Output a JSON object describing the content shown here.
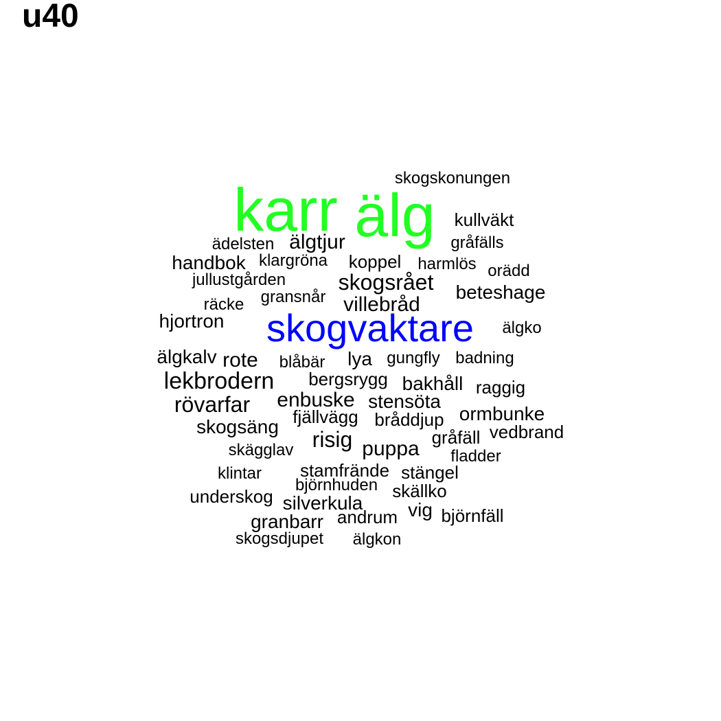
{
  "title": "u40",
  "colors": {
    "default": "#000000",
    "green": "#22ff22",
    "blue": "#0000ff"
  },
  "words": [
    {
      "text": "skogskonungen",
      "color": "default"
    },
    {
      "text": "karr",
      "color": "green"
    },
    {
      "text": "älg",
      "color": "green"
    },
    {
      "text": "kullväkt",
      "color": "default"
    },
    {
      "text": "ädelsten",
      "color": "default"
    },
    {
      "text": "älgtjur",
      "color": "default"
    },
    {
      "text": "gråfälls",
      "color": "default"
    },
    {
      "text": "handbok",
      "color": "default"
    },
    {
      "text": "klargröna",
      "color": "default"
    },
    {
      "text": "koppel",
      "color": "default"
    },
    {
      "text": "harmlös",
      "color": "default"
    },
    {
      "text": "orädd",
      "color": "default"
    },
    {
      "text": "jullustgården",
      "color": "default"
    },
    {
      "text": "skogsrået",
      "color": "default"
    },
    {
      "text": "beteshage",
      "color": "default"
    },
    {
      "text": "räcke",
      "color": "default"
    },
    {
      "text": "gransnår",
      "color": "default"
    },
    {
      "text": "villebråd",
      "color": "default"
    },
    {
      "text": "hjortron",
      "color": "default"
    },
    {
      "text": "skogvaktare",
      "color": "blue"
    },
    {
      "text": "älgko",
      "color": "default"
    },
    {
      "text": "älgkalv",
      "color": "default"
    },
    {
      "text": "rote",
      "color": "default"
    },
    {
      "text": "blåbär",
      "color": "default"
    },
    {
      "text": "lya",
      "color": "default"
    },
    {
      "text": "gungfly",
      "color": "default"
    },
    {
      "text": "badning",
      "color": "default"
    },
    {
      "text": "lekbrodern",
      "color": "default"
    },
    {
      "text": "bergsrygg",
      "color": "default"
    },
    {
      "text": "bakhåll",
      "color": "default"
    },
    {
      "text": "raggig",
      "color": "default"
    },
    {
      "text": "rövarfar",
      "color": "default"
    },
    {
      "text": "enbuske",
      "color": "default"
    },
    {
      "text": "stensöta",
      "color": "default"
    },
    {
      "text": "fjällvägg",
      "color": "default"
    },
    {
      "text": "bråddjup",
      "color": "default"
    },
    {
      "text": "ormbunke",
      "color": "default"
    },
    {
      "text": "skogsäng",
      "color": "default"
    },
    {
      "text": "risig",
      "color": "default"
    },
    {
      "text": "gråfäll",
      "color": "default"
    },
    {
      "text": "vedbrand",
      "color": "default"
    },
    {
      "text": "skägglav",
      "color": "default"
    },
    {
      "text": "puppa",
      "color": "default"
    },
    {
      "text": "fladder",
      "color": "default"
    },
    {
      "text": "klintar",
      "color": "default"
    },
    {
      "text": "stamfrände",
      "color": "default"
    },
    {
      "text": "stängel",
      "color": "default"
    },
    {
      "text": "björnhuden",
      "color": "default"
    },
    {
      "text": "underskog",
      "color": "default"
    },
    {
      "text": "skällko",
      "color": "default"
    },
    {
      "text": "silverkula",
      "color": "default"
    },
    {
      "text": "vig",
      "color": "default"
    },
    {
      "text": "andrum",
      "color": "default"
    },
    {
      "text": "björnfäll",
      "color": "default"
    },
    {
      "text": "granbarr",
      "color": "default"
    },
    {
      "text": "skogsdjupet",
      "color": "default"
    },
    {
      "text": "älgkon",
      "color": "default"
    }
  ]
}
